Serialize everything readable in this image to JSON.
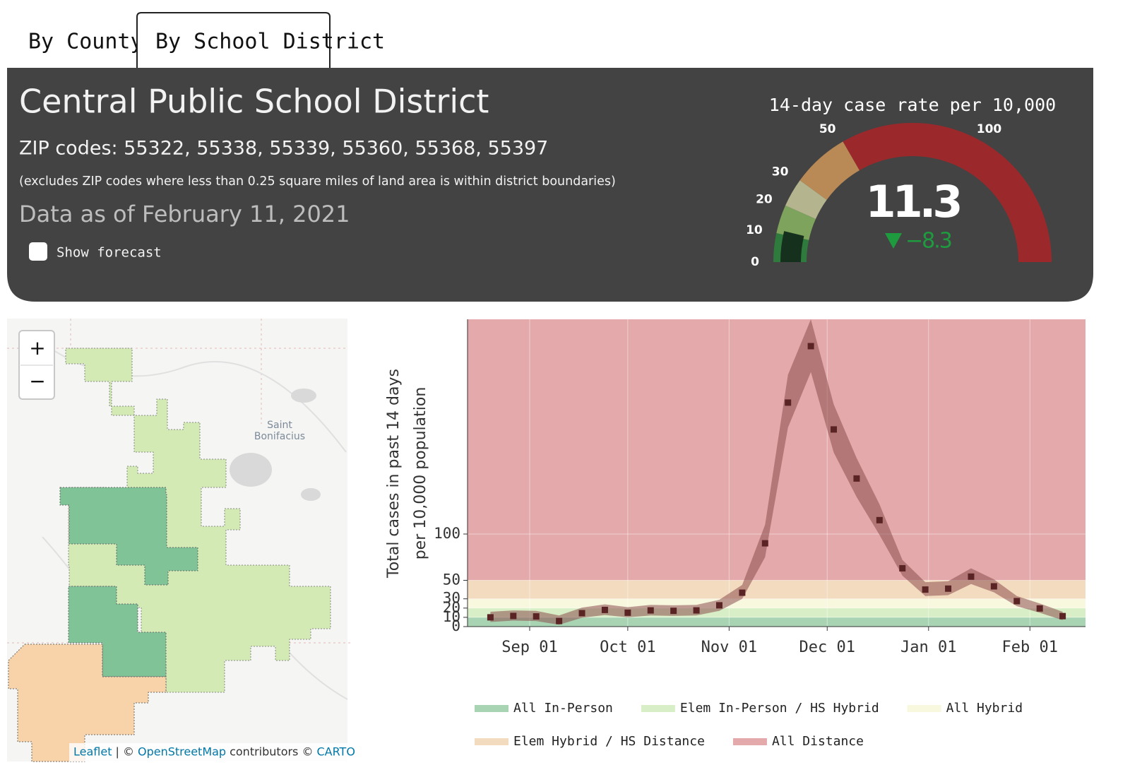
{
  "tabs": [
    "By County",
    "By School District"
  ],
  "header": {
    "title": "Central Public School District",
    "zip_codes": "ZIP codes: 55322, 55338, 55339, 55360, 55368, 55397",
    "note": "(excludes ZIP codes where less than 0.25 square miles of land area is within district boundaries)",
    "data_as_of": "Data as of February 11, 2021",
    "show_forecast": "Show forecast"
  },
  "map": {
    "place_label": [
      "Saint",
      "Bonifacius"
    ],
    "zoom_in": "+",
    "zoom_out": "−",
    "attribution": [
      "Leaflet",
      "| ©",
      "OpenStreetMap",
      "contributors ©",
      "CARTO"
    ]
  },
  "chart_data": [
    {
      "type": "gauge",
      "title": "14-day case rate per 10,000",
      "value": 11.3,
      "change": -8.3,
      "change_label": "−8.3",
      "range": [
        0,
        150
      ],
      "ticks": [
        0,
        10,
        20,
        30,
        50,
        100
      ],
      "value_color": "#15301c",
      "change_color": "#1f9b3f",
      "bands": [
        {
          "from": 0,
          "to": 10,
          "color": "#2f7a3d"
        },
        {
          "from": 10,
          "to": 20,
          "color": "#7ea35c"
        },
        {
          "from": 20,
          "to": 30,
          "color": "#b4b48f"
        },
        {
          "from": 30,
          "to": 50,
          "color": "#b98956"
        },
        {
          "from": 50,
          "to": 150,
          "color": "#9b292c"
        }
      ]
    },
    {
      "type": "line",
      "y_label": [
        "Total cases in past 14 days",
        "per 10,000 population"
      ],
      "x": [
        "Aug 20",
        "Aug 27",
        "Sep 03",
        "Sep 10",
        "Sep 17",
        "Sep 24",
        "Oct 01",
        "Oct 08",
        "Oct 15",
        "Oct 22",
        "Oct 29",
        "Nov 05",
        "Nov 12",
        "Nov 19",
        "Nov 26",
        "Dec 03",
        "Dec 10",
        "Dec 17",
        "Dec 24",
        "Dec 31",
        "Jan 07",
        "Jan 14",
        "Jan 21",
        "Jan 28",
        "Feb 04",
        "Feb 11"
      ],
      "values": [
        10,
        11.5,
        11,
        6,
        14.5,
        18,
        15,
        17.5,
        17,
        17.5,
        23,
        36.6,
        90,
        242,
        303,
        213,
        160,
        115,
        63,
        40,
        41,
        54,
        43.5,
        27.5,
        19.6,
        11.3
      ],
      "band_upper": [
        16,
        17.5,
        17,
        12,
        20.5,
        24,
        21,
        23.5,
        23,
        23.5,
        29,
        45,
        110,
        272,
        332,
        240,
        182,
        132,
        72,
        48,
        49,
        63,
        51,
        33,
        25,
        16
      ],
      "band_lower": [
        5,
        6.5,
        6,
        2,
        9.5,
        12.5,
        10,
        12,
        11.5,
        12,
        17,
        30,
        75,
        215,
        275,
        188,
        140,
        99,
        55,
        33,
        34,
        46,
        37,
        22,
        15,
        7
      ],
      "marker_color": "#5b2424",
      "band_color": "#8c4e4e",
      "zones": [
        {
          "name": "All In-Person",
          "from": 0,
          "to": 10,
          "color": "#a8d4b3"
        },
        {
          "name": "Elem In-Person / HS Hybrid",
          "from": 10,
          "to": 20,
          "color": "#d8eec6"
        },
        {
          "name": "All Hybrid",
          "from": 20,
          "to": 30,
          "color": "#f8f8df"
        },
        {
          "name": "Elem Hybrid / HS Distance",
          "from": 30,
          "to": 50,
          "color": "#f3dbbf"
        },
        {
          "name": "All Distance",
          "from": 50,
          "to": 332,
          "color": "#e4a9aa"
        }
      ],
      "ylim": [
        0,
        332
      ],
      "yticks": [
        0,
        10,
        20,
        30,
        50,
        100
      ],
      "xlim": [
        "Aug 13",
        "Feb 18"
      ],
      "xticks": [
        "Sep 01",
        "Oct 01",
        "Nov 01",
        "Dec 01",
        "Jan 01",
        "Feb 01"
      ],
      "grid": true
    }
  ]
}
